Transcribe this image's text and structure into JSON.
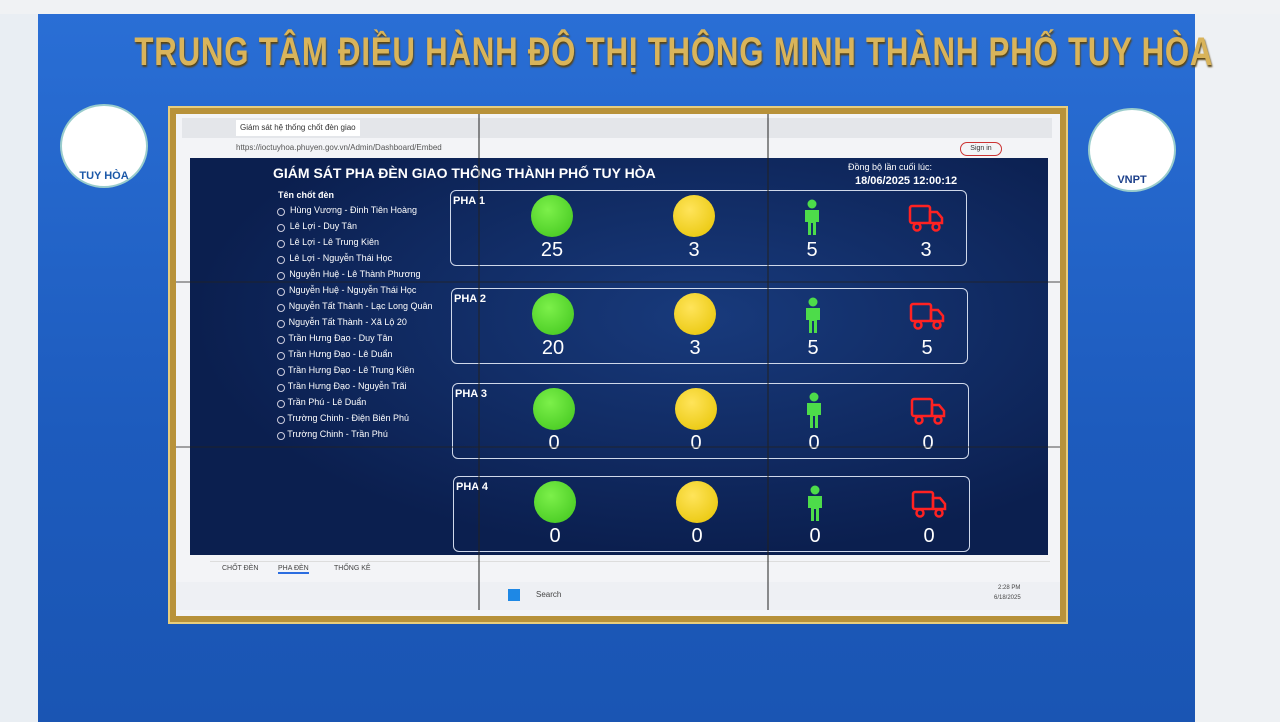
{
  "wall_title": "TRUNG TÂM ĐIỀU HÀNH ĐÔ THỊ THÔNG MINH THÀNH PHỐ TUY HÒA",
  "logos": {
    "left": "TUY HÒA",
    "right": "VNPT"
  },
  "browser": {
    "tab_title": "Giám sát hệ thống chốt đèn giao",
    "url": "https://ioctuyhoa.phuyen.gov.vn/Admin/Dashboard/Embed",
    "sign_in": "Sign in"
  },
  "dashboard": {
    "title": "GIÁM SÁT PHA ĐÈN GIAO THÔNG THÀNH PHỐ TUY HÒA",
    "sync_label": "Đồng bộ lần cuối lúc:",
    "sync_time": "18/06/2025 12:00:12",
    "list_header": "Tên chốt đèn",
    "intersections": [
      "Hùng Vương - Đinh Tiên Hoàng",
      "Lê Lợi - Duy Tân",
      "Lê Lợi - Lê Trung Kiên",
      "Lê Lợi - Nguyễn Thái Học",
      "Nguyễn Huệ - Lê Thành Phương",
      "Nguyễn Huệ - Nguyễn Thái Học",
      "Nguyễn Tất Thành - Lạc Long Quân",
      "Nguyễn Tất Thành - Xã Lộ 20",
      "Trần Hưng Đạo - Duy Tân",
      "Trần Hưng Đạo - Lê Duẩn",
      "Trần Hưng Đạo - Lê Trung Kiên",
      "Trần Hưng Đạo - Nguyễn Trãi",
      "Trần Phú - Lê Duẩn",
      "Trường Chinh - Điện Biên Phủ",
      "Trường Chinh - Trần Phú"
    ],
    "phases": [
      {
        "name": "PHA 1",
        "green": 25,
        "yellow": 3,
        "pedestrian": 5,
        "vehicle": 3
      },
      {
        "name": "PHA 2",
        "green": 20,
        "yellow": 3,
        "pedestrian": 5,
        "vehicle": 5
      },
      {
        "name": "PHA 3",
        "green": 0,
        "yellow": 0,
        "pedestrian": 0,
        "vehicle": 0
      },
      {
        "name": "PHA 4",
        "green": 0,
        "yellow": 0,
        "pedestrian": 0,
        "vehicle": 0
      }
    ],
    "tabs": [
      "CHỐT ĐÈN",
      "PHA ĐÈN",
      "THỐNG KÊ"
    ]
  },
  "taskbar": {
    "search": "Search",
    "time": "2:28 PM",
    "date": "6/18/2025"
  }
}
